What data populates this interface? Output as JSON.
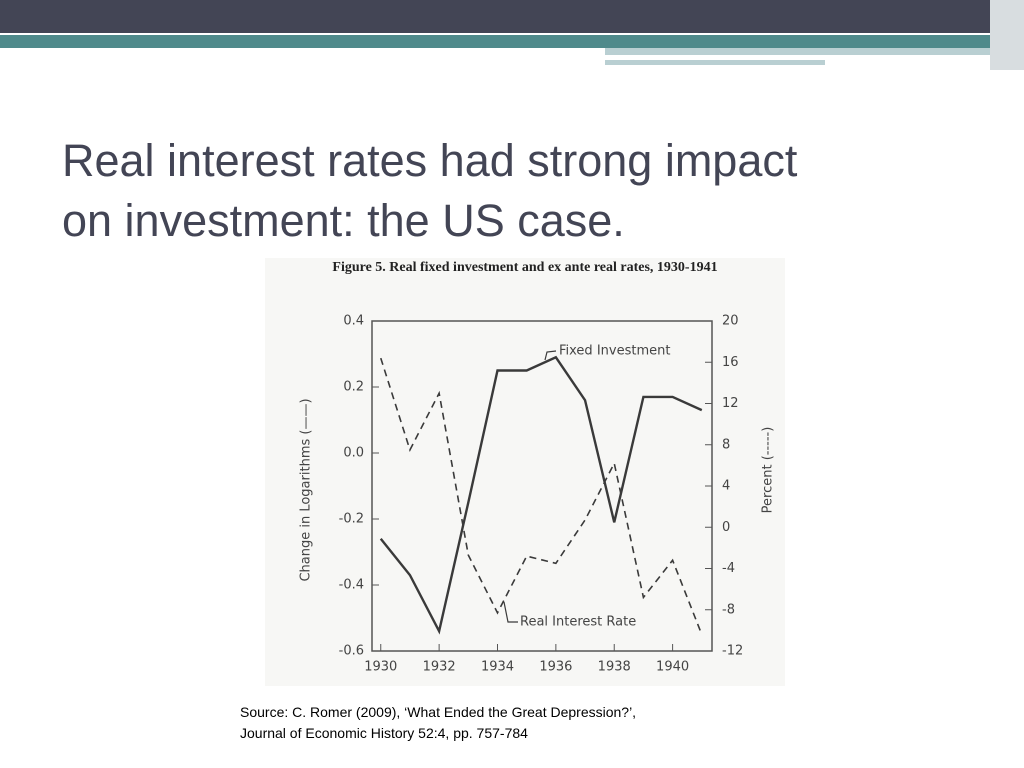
{
  "slide": {
    "title_lines": [
      "Real interest rates had strong impact",
      "on investment: the US case."
    ],
    "source_lines": [
      "Source: C. Romer (2009), ‘What Ended the Great Depression?’,",
      "Journal of Economic History 52:4, pp. 757-784"
    ]
  },
  "chart_data": {
    "type": "line",
    "title": "Figure 5. Real fixed investment and ex ante real rates, 1930-1941",
    "y_label": "Change in Logarithms (——)",
    "y2_label": "Percent (-----)",
    "x": [
      1930,
      1931,
      1932,
      1933,
      1934,
      1935,
      1936,
      1937,
      1938,
      1939,
      1940,
      1941
    ],
    "xlim": [
      1929.7,
      1941.35
    ],
    "xticks": [
      1930,
      1932,
      1934,
      1936,
      1938,
      1940
    ],
    "ylim": [
      -0.6,
      0.4
    ],
    "yticks": [
      0.4,
      0.2,
      {
        "value": 0,
        "label": "0.0"
      },
      -0.2,
      -0.4,
      -0.6
    ],
    "y2lim": [
      -12,
      20
    ],
    "y2ticks": [
      20,
      16,
      12,
      8,
      4,
      0,
      -4,
      -8,
      -12
    ],
    "series": [
      {
        "name": "Fixed Investment",
        "color": "#3a3a3a",
        "dashed": false,
        "values": [
          -0.26,
          -0.37,
          -0.54,
          -0.15,
          0.25,
          0.25,
          0.29,
          0.16,
          -0.21,
          0.17,
          0.17,
          0.13
        ]
      },
      {
        "name": "Real Interest Rate",
        "color": "#3a3a3a",
        "dashed": true,
        "axis": "y2",
        "values": [
          16.4,
          7.5,
          13,
          -2.7,
          -8.3,
          -2.8,
          -3.5,
          0.7,
          6.2,
          -6.8,
          -3.2,
          -10.4
        ]
      }
    ]
  }
}
